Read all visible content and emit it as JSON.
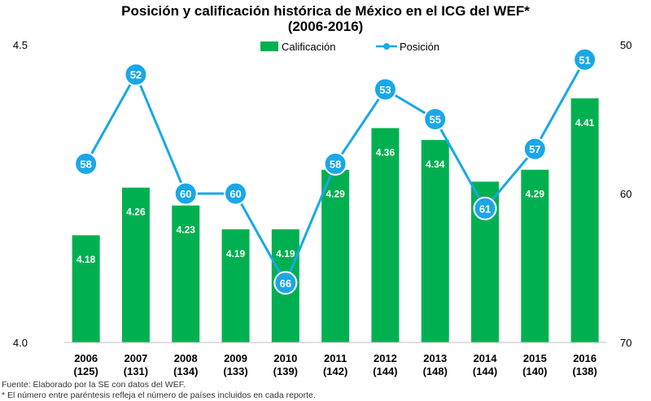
{
  "title_line1": "Posición y calificación histórica de México en el ICG del WEF*",
  "title_line2": "(2006-2016)",
  "footnotes": {
    "source": "Fuente: Elaborado por la SE con datos del WEF.",
    "note": "* El número entre paréntesis refleja el número de países incluidos en cada reporte."
  },
  "chart_data": {
    "type": "bar",
    "categories": [
      "2006",
      "2007",
      "2008",
      "2009",
      "2010",
      "2011",
      "2012",
      "2013",
      "2014",
      "2015",
      "2016"
    ],
    "category_sublabels": [
      "(125)",
      "(131)",
      "(134)",
      "(133)",
      "(139)",
      "(142)",
      "(144)",
      "(148)",
      "(144)",
      "(140)",
      "(138)"
    ],
    "series": [
      {
        "name": "Calificación",
        "type": "bar",
        "axis": "left",
        "color": "#00B050",
        "values": [
          4.18,
          4.26,
          4.23,
          4.19,
          4.19,
          4.29,
          4.36,
          4.34,
          4.27,
          4.29,
          4.41
        ]
      },
      {
        "name": "Posición",
        "type": "line",
        "axis": "right",
        "color": "#1AA7E8",
        "values": [
          58,
          52,
          60,
          60,
          66,
          58,
          53,
          55,
          61,
          57,
          51
        ]
      }
    ],
    "left_axis": {
      "ylim": [
        4.0,
        4.5
      ],
      "ticks": [
        "4.0",
        "4.5"
      ]
    },
    "right_axis": {
      "ylim": [
        70,
        50
      ],
      "reversed": true,
      "ticks": [
        "50",
        "60",
        "70"
      ]
    },
    "legend": "top-right",
    "grid": false
  }
}
